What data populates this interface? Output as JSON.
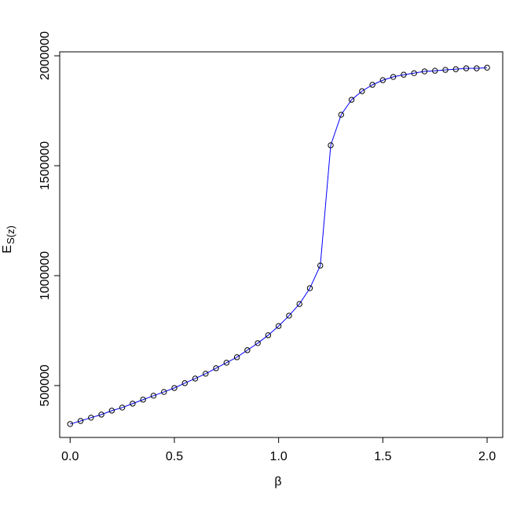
{
  "chart_data": {
    "type": "line",
    "xlabel": "β",
    "ylabel": "E",
    "ylabel_sub": "S(z)",
    "x": [
      0,
      0.05,
      0.1,
      0.15,
      0.2,
      0.25,
      0.3,
      0.35,
      0.4,
      0.45,
      0.5,
      0.55,
      0.6,
      0.65,
      0.7,
      0.75,
      0.8,
      0.85,
      0.9,
      0.95,
      1.0,
      1.05,
      1.1,
      1.15,
      1.2,
      1.25,
      1.3,
      1.35,
      1.4,
      1.45,
      1.5,
      1.55,
      1.6,
      1.65,
      1.7,
      1.75,
      1.8,
      1.85,
      1.9,
      1.95,
      2.0
    ],
    "values": [
      325000,
      339000,
      354000,
      368000,
      386000,
      400000,
      418000,
      436000,
      454000,
      471000,
      489000,
      511000,
      532000,
      554000,
      579000,
      604000,
      629000,
      661000,
      693000,
      729000,
      771000,
      818000,
      871000,
      943000,
      1046000,
      1593000,
      1732000,
      1800000,
      1839000,
      1868000,
      1889000,
      1904000,
      1914000,
      1921000,
      1929000,
      1932000,
      1936000,
      1939000,
      1943000,
      1943000,
      1946000
    ],
    "line_color": "#0000ff",
    "point_color": "#000000",
    "xlim": [
      -0.05,
      2.075
    ],
    "ylim": [
      264000,
      2018000
    ],
    "xticks": [
      {
        "value": 0,
        "label": "0.0"
      },
      0.5,
      {
        "value": 1,
        "label": "1.0"
      },
      1.5,
      {
        "value": 2,
        "label": "2.0"
      }
    ],
    "yticks": [
      500000,
      1000000,
      1500000,
      2000000
    ]
  }
}
